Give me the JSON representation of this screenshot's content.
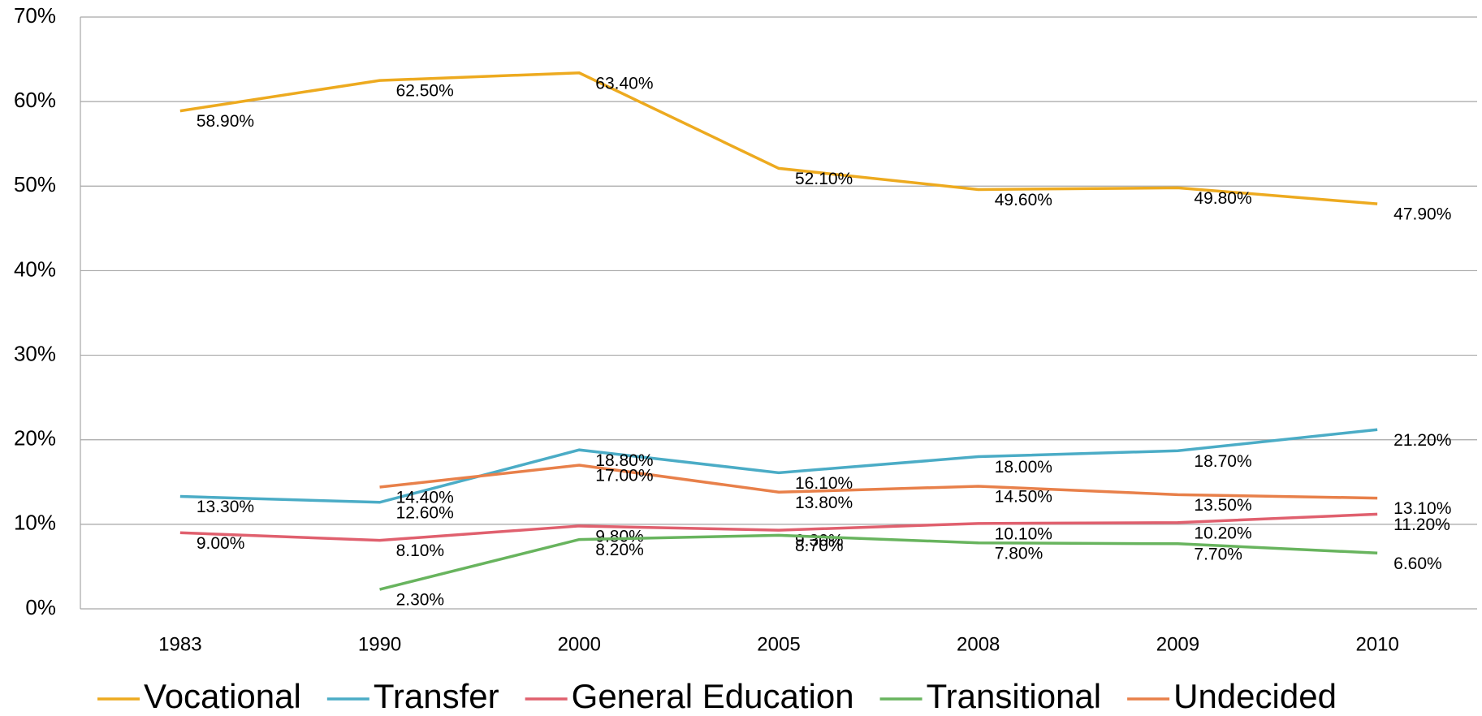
{
  "chart_data": {
    "type": "line",
    "categories": [
      "1983",
      "1990",
      "2000",
      "2005",
      "2008",
      "2009",
      "2010"
    ],
    "series": [
      {
        "name": "Vocational",
        "color": "#edaa1f",
        "values": [
          58.9,
          62.5,
          63.4,
          52.1,
          49.6,
          49.8,
          47.9
        ],
        "value_labels": [
          "58.90%",
          "62.50%",
          "63.40%",
          "52.10%",
          "49.60%",
          "49.80%",
          "47.90%"
        ]
      },
      {
        "name": "Transfer",
        "color": "#4bacc6",
        "values": [
          13.3,
          12.6,
          18.8,
          16.1,
          18.0,
          18.7,
          21.2
        ],
        "value_labels": [
          "13.30%",
          "12.60%",
          "18.80%",
          "16.10%",
          "18.00%",
          "18.70%",
          "21.20%"
        ]
      },
      {
        "name": "General Education",
        "color": "#e0606e",
        "values": [
          9.0,
          8.1,
          9.8,
          9.3,
          10.1,
          10.2,
          11.2
        ],
        "value_labels": [
          "9.00%",
          "8.10%",
          "9.80%",
          "9.30%",
          "10.10%",
          "10.20%",
          "11.20%"
        ]
      },
      {
        "name": "Transitional",
        "color": "#68b45e",
        "values": [
          null,
          2.3,
          8.2,
          8.7,
          7.8,
          7.7,
          6.6
        ],
        "value_labels": [
          null,
          "2.30%",
          "8.20%",
          "8.70%",
          "7.80%",
          "7.70%",
          "6.60%"
        ]
      },
      {
        "name": "Undecided",
        "color": "#e8804a",
        "values": [
          null,
          14.4,
          17.0,
          13.8,
          14.5,
          13.5,
          13.1
        ],
        "value_labels": [
          null,
          "14.40%",
          "17.00%",
          "13.80%",
          "14.50%",
          "13.50%",
          "13.10%"
        ]
      }
    ],
    "ylim": [
      0,
      70
    ],
    "yticks": [
      {
        "value": 0,
        "label": "0%"
      },
      {
        "value": 10,
        "label": "10%"
      },
      {
        "value": 20,
        "label": "20%"
      },
      {
        "value": 30,
        "label": "30%"
      },
      {
        "value": 40,
        "label": "40%"
      },
      {
        "value": 50,
        "label": "50%"
      },
      {
        "value": 60,
        "label": "60%"
      },
      {
        "value": 70,
        "label": "70%"
      }
    ],
    "grid": true,
    "legend": "bottom"
  }
}
